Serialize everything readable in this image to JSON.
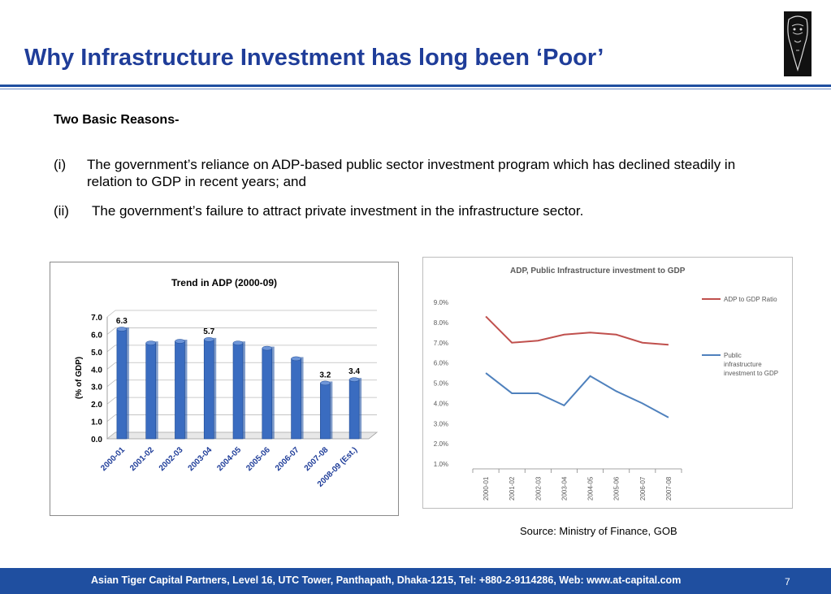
{
  "slide": {
    "title": "Why Infrastructure Investment has long been ‘Poor’",
    "subheading": "Two Basic Reasons-",
    "reasons": [
      {
        "num": "(i)",
        "text": "The government’s reliance on ADP-based public sector investment program which has declined steadily in relation to GDP in recent years; and"
      },
      {
        "num": "(ii)",
        "text": "The government’s failure to attract private investment in the infrastructure sector."
      }
    ],
    "source": "Source: Ministry of Finance, GOB",
    "footer": "Asian Tiger Capital Partners, Level 16, UTC Tower, Panthapath, Dhaka-1215,  Tel: +880-2-9114286,  Web: www.at-capital.com",
    "page_number": "7",
    "colors": {
      "title": "#1f3d99",
      "footer_bg": "#1f4fa0",
      "bar": "#3a6cc0"
    },
    "logo_icon": "tiger-logo-icon"
  },
  "chart_data": [
    {
      "type": "bar",
      "title": "Trend in ADP (2000-09)",
      "ylabel": "(% of GDP)",
      "categories": [
        "2000-01",
        "2001-02",
        "2002-03",
        "2003-04",
        "2004-05",
        "2005-06",
        "2006-07",
        "2007-08",
        "2008-09 (Est.)"
      ],
      "values": [
        6.3,
        5.5,
        5.6,
        5.7,
        5.5,
        5.2,
        4.6,
        3.2,
        3.4
      ],
      "data_labels": [
        "6.3",
        "",
        "",
        "5.7",
        "",
        "",
        "",
        "3.2",
        "3.4"
      ],
      "yticks": [
        "0.0",
        "1.0",
        "2.0",
        "3.0",
        "4.0",
        "5.0",
        "6.0",
        "7.0"
      ],
      "ylim": [
        0,
        7
      ]
    },
    {
      "type": "line",
      "title": "ADP, Public Infrastructure investment to GDP",
      "categories": [
        "2000-01",
        "2001-02",
        "2002-03",
        "2003-04",
        "2004-05",
        "2005-06",
        "2006-07",
        "2007-08"
      ],
      "series": [
        {
          "name": "ADP to GDP Ratio",
          "color": "#c0504d",
          "values": [
            8.3,
            7.0,
            7.1,
            7.4,
            7.5,
            7.4,
            7.0,
            6.9
          ]
        },
        {
          "name": "Public infrastructure investment to GDP",
          "color": "#4f81bd",
          "values": [
            5.5,
            4.5,
            4.5,
            3.9,
            5.35,
            4.6,
            4.0,
            3.3
          ]
        }
      ],
      "legend_lines": [
        [
          "ADP to GDP Ratio"
        ],
        [
          "Public",
          "infrastructure",
          "investment to GDP"
        ]
      ],
      "yticks": [
        "1.0%",
        "2.0%",
        "3.0%",
        "4.0%",
        "5.0%",
        "6.0%",
        "7.0%",
        "8.0%",
        "9.0%"
      ],
      "ylim": [
        1,
        9
      ],
      "legend": "right",
      "grid": false
    }
  ]
}
